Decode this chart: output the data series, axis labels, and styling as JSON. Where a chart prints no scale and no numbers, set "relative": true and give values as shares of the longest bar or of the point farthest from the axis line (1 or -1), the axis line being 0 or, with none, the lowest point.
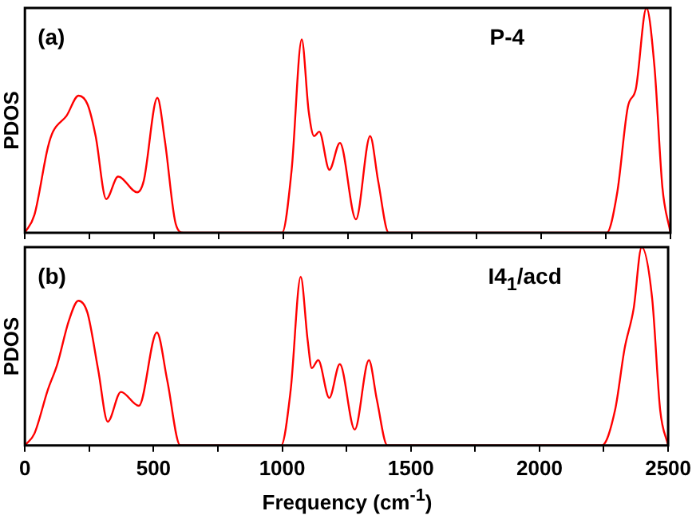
{
  "chart_data": [
    {
      "type": "line",
      "ylabel": "PDOS",
      "annotations": [
        "(a)",
        "P-4"
      ],
      "relative": true,
      "xlim": [
        0,
        2500
      ],
      "xticks": [
        0,
        {
          "value": 250,
          "label": null
        },
        500,
        {
          "value": 750,
          "label": null
        },
        1000,
        {
          "value": 1250,
          "label": null
        },
        1500,
        {
          "value": 1750,
          "label": null
        },
        2000,
        {
          "value": 2250,
          "label": null
        },
        2500
      ],
      "tick_labels": false,
      "grid": false,
      "legend": false,
      "marker": "none",
      "line_style": "solid",
      "series": [
        {
          "color": "#ff0000",
          "x": [
            0,
            37,
            89,
            109,
            161,
            208,
            243,
            274,
            315,
            361,
            435,
            460,
            513,
            542,
            584,
            614,
            996,
            1033,
            1072,
            1099,
            1120,
            1140,
            1179,
            1220,
            1282,
            1337,
            1368,
            1409,
            2253,
            2294,
            2335,
            2366,
            2407,
            2438,
            2469,
            2500
          ],
          "values": [
            0,
            0.08,
            0.38,
            0.45,
            0.52,
            0.61,
            0.57,
            0.43,
            0.15,
            0.25,
            0.18,
            0.23,
            0.6,
            0.41,
            0.04,
            0,
            0,
            0.28,
            0.86,
            0.54,
            0.43,
            0.45,
            0.28,
            0.4,
            0.06,
            0.43,
            0.23,
            0,
            0,
            0.18,
            0.56,
            0.64,
            1,
            0.74,
            0.2,
            0
          ]
        }
      ]
    },
    {
      "type": "line",
      "xlabel": "Frequency (cm$^{-1}$)",
      "ylabel": "PDOS",
      "annotations": [
        "(b)",
        "I4$_{1}$/acd"
      ],
      "relative": true,
      "xlim": [
        0,
        2500
      ],
      "xticks": [
        0,
        {
          "value": 250,
          "label": null
        },
        500,
        {
          "value": 750,
          "label": null
        },
        1000,
        {
          "value": 1250,
          "label": null
        },
        1500,
        {
          "value": 1750,
          "label": null
        },
        2000,
        {
          "value": 2250,
          "label": null
        },
        2500
      ],
      "tick_labels": "x",
      "grid": false,
      "legend": false,
      "marker": "none",
      "line_style": "solid",
      "series": [
        {
          "color": "#ff0000",
          "x": [
            0,
            37,
            89,
            126,
            171,
            208,
            243,
            285,
            322,
            373,
            443,
            513,
            553,
            604,
            996,
            1033,
            1072,
            1099,
            1115,
            1140,
            1183,
            1224,
            1282,
            1337,
            1368,
            1409,
            2242,
            2294,
            2331,
            2366,
            2397,
            2438,
            2469,
            2500
          ],
          "values": [
            0,
            0.06,
            0.28,
            0.41,
            0.63,
            0.73,
            0.67,
            0.38,
            0.12,
            0.27,
            0.2,
            0.57,
            0.33,
            0,
            0,
            0.28,
            0.85,
            0.53,
            0.39,
            0.43,
            0.24,
            0.41,
            0.08,
            0.43,
            0.23,
            0,
            0,
            0.18,
            0.49,
            0.69,
            1,
            0.74,
            0.18,
            0
          ]
        }
      ]
    }
  ]
}
